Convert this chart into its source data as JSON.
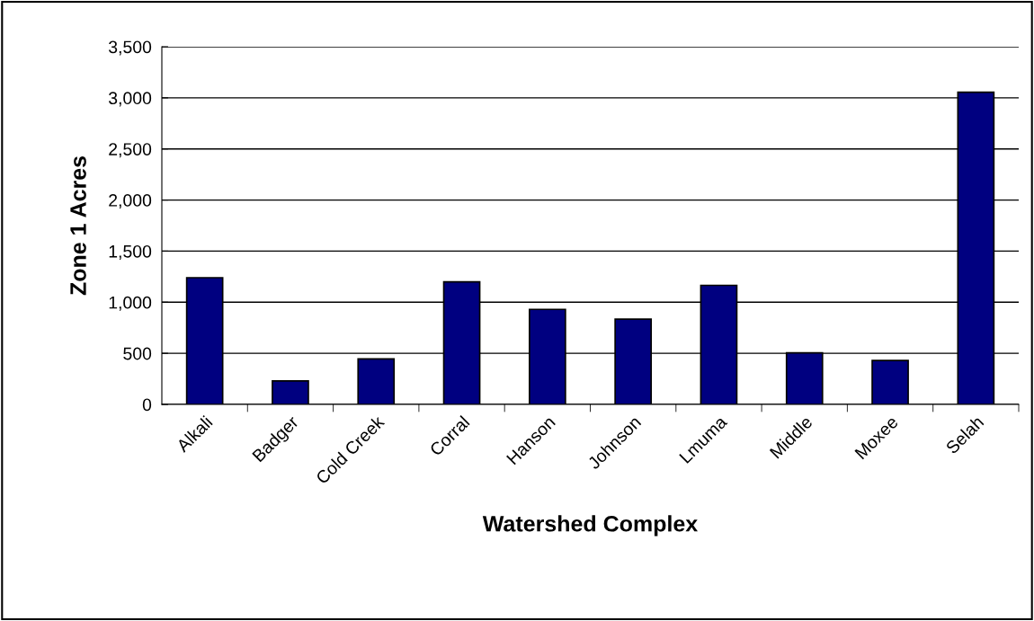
{
  "chart_data": {
    "type": "bar",
    "xlabel": "Watershed Complex",
    "ylabel": "Zone 1 Acres",
    "categories": [
      "Alkali",
      "Badger",
      "Cold Creek",
      "Corral",
      "Hanson",
      "Johnson",
      "Lmuma",
      "Middle",
      "Moxee",
      "Selah"
    ],
    "values": [
      1240,
      230,
      445,
      1200,
      930,
      835,
      1165,
      505,
      430,
      3055
    ],
    "color": "#000080",
    "ylim": [
      0,
      3500
    ],
    "yticks": [
      {
        "value": 0,
        "label": "0"
      },
      {
        "value": 500,
        "label": "500"
      },
      {
        "value": 1000,
        "label": "1,000"
      },
      {
        "value": 1500,
        "label": "1,500"
      },
      {
        "value": 2000,
        "label": "2,000"
      },
      {
        "value": 2500,
        "label": "2,500"
      },
      {
        "value": 3000,
        "label": "3,000"
      },
      {
        "value": 3500,
        "label": "3,500"
      }
    ],
    "grid": "y",
    "legend": false
  }
}
